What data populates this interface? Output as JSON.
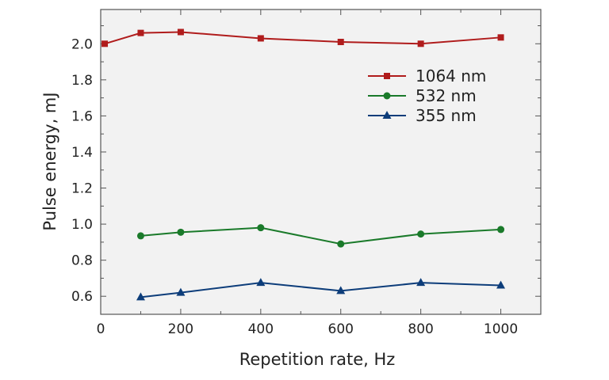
{
  "chart_data": {
    "type": "line",
    "title": "",
    "xlabel": "Repetition rate, Hz",
    "ylabel": "Pulse energy, mJ",
    "xlim": [
      0,
      1100
    ],
    "ylim": [
      0.5,
      2.19
    ],
    "xticks": [
      0,
      200,
      400,
      600,
      800,
      1000
    ],
    "xtick_labels": [
      "0",
      "200",
      "400",
      "600",
      "800",
      "1000"
    ],
    "yticks": [
      0.6,
      0.8,
      1.0,
      1.2,
      1.4,
      1.6,
      1.8,
      2.0
    ],
    "ytick_labels": [
      "0.6",
      "0.8",
      "1.0",
      "1.2",
      "1.4",
      "1.6",
      "1.8",
      "2.0"
    ],
    "grid": false,
    "legend_position": "top-right",
    "series": [
      {
        "name": "1064 nm",
        "color": "#b01c1c",
        "marker": "square",
        "x": [
          10,
          100,
          200,
          400,
          600,
          800,
          1000
        ],
        "y": [
          2.0,
          2.06,
          2.065,
          2.03,
          2.01,
          2.0,
          2.035
        ]
      },
      {
        "name": "532 nm",
        "color": "#1a7a2a",
        "marker": "circle",
        "x": [
          100,
          200,
          400,
          600,
          800,
          1000
        ],
        "y": [
          0.935,
          0.955,
          0.98,
          0.89,
          0.945,
          0.97
        ]
      },
      {
        "name": "355 nm",
        "color": "#0d3d7a",
        "marker": "triangle",
        "x": [
          100,
          200,
          400,
          600,
          800,
          1000
        ],
        "y": [
          0.595,
          0.62,
          0.675,
          0.63,
          0.675,
          0.66
        ]
      }
    ]
  }
}
